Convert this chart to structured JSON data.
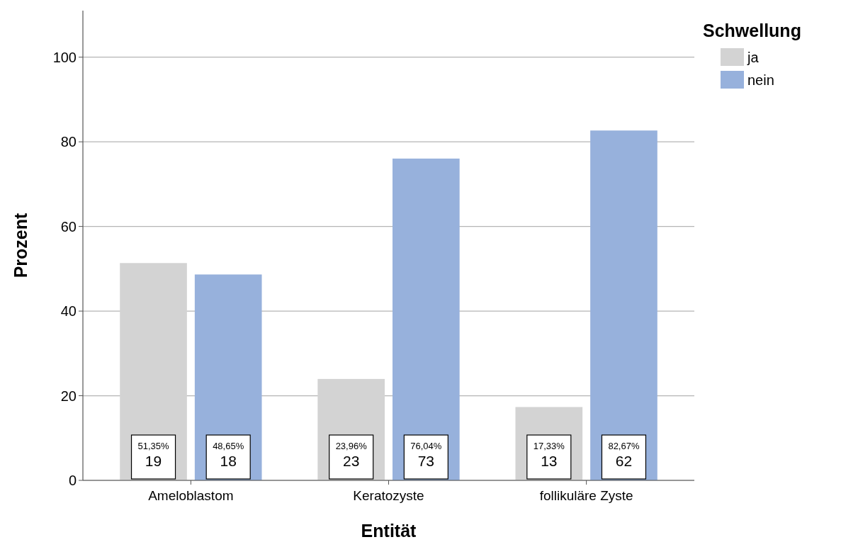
{
  "chart_data": {
    "type": "bar",
    "xlabel": "Entität",
    "ylabel": "Prozent",
    "legend_title": "Schwellung",
    "categories": [
      "Ameloblastom",
      "Keratozyste",
      "follikuläre Zyste"
    ],
    "series": [
      {
        "name": "ja",
        "color": "#d3d3d3",
        "values": [
          51.35,
          23.96,
          17.33
        ],
        "value_labels": [
          "51,35%\n19",
          "23,96%\n23",
          "17,33%\n13"
        ]
      },
      {
        "name": "nein",
        "color": "#97b1dc",
        "values": [
          48.65,
          76.04,
          82.67
        ],
        "value_labels": [
          "48,65%\n18",
          "76,04%\n73",
          "82,67%\n62"
        ]
      }
    ],
    "ylim": [
      0,
      111
    ],
    "yticks": [
      0,
      20,
      40,
      60,
      80,
      100
    ],
    "grid": "y",
    "legend": "top right"
  }
}
